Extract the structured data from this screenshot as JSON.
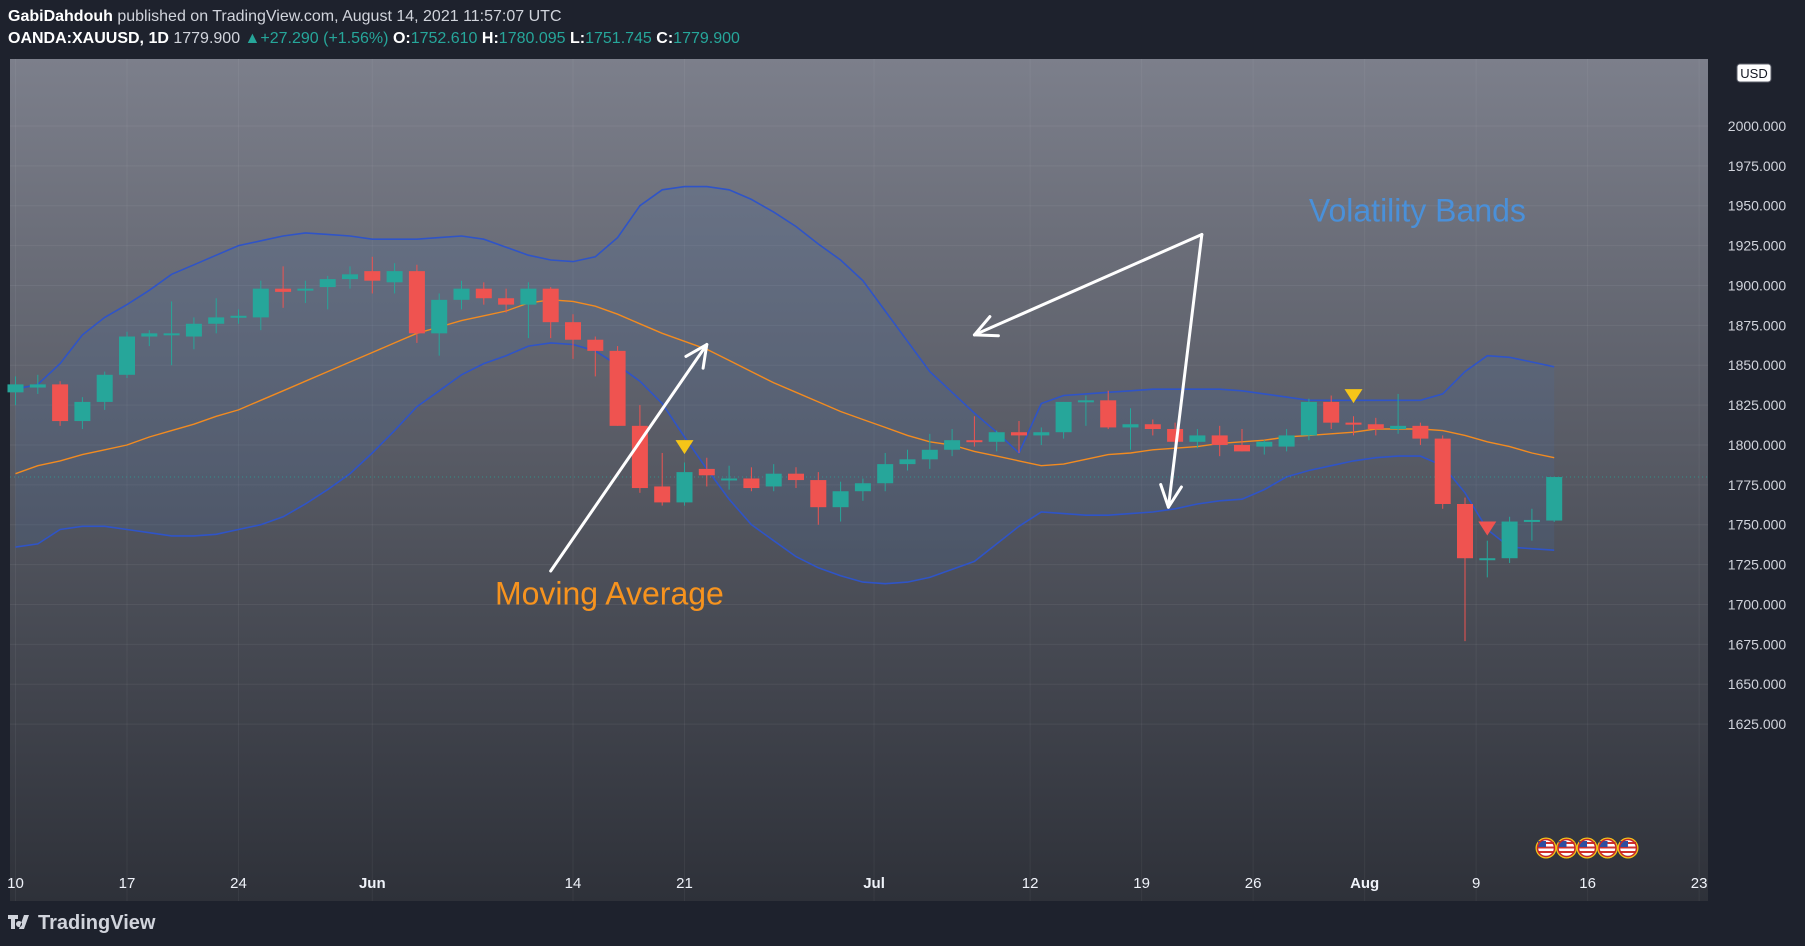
{
  "header": {
    "author": "GabiDahdouh",
    "published_text": "published on TradingView.com, August 14, 2021 11:57:07 UTC",
    "symbol": "OANDA:XAUUSD, 1D",
    "last": "1779.900",
    "change": "+27.290 (+1.56%)",
    "o_label": "O:",
    "o_value": "1752.610",
    "h_label": "H:",
    "h_value": "1780.095",
    "l_label": "L:",
    "l_value": "1751.745",
    "c_label": "C:",
    "c_value": "1779.900"
  },
  "footer": {
    "brand": "TradingView"
  },
  "colors": {
    "up": "#26a69a",
    "down": "#ef5350",
    "band": "#2f54c7",
    "ma": "#f28b20",
    "arrow": "#ffffff",
    "marker": "#f5c518",
    "annotation_ma": "#f7931e",
    "annotation_bands": "#4a90d9"
  },
  "chart_data": {
    "type": "candlestick",
    "currency": "USD",
    "ylim": [
      1605,
      2042
    ],
    "y_ticks": [
      "1625.000",
      "1650.000",
      "1675.000",
      "1700.000",
      "1725.000",
      "1750.000",
      "1775.000",
      "1800.000",
      "1825.000",
      "1850.000",
      "1875.000",
      "1900.000",
      "1925.000",
      "1950.000",
      "1975.000",
      "2000.000"
    ],
    "x_ticks": [
      {
        "label": "10",
        "i": 0
      },
      {
        "label": "17",
        "i": 5
      },
      {
        "label": "24",
        "i": 10
      },
      {
        "label": "Jun",
        "i": 16
      },
      {
        "label": "14",
        "i": 25
      },
      {
        "label": "21",
        "i": 30
      },
      {
        "label": "Jul",
        "i": 38.5
      },
      {
        "label": "12",
        "i": 45.5
      },
      {
        "label": "19",
        "i": 50.5
      },
      {
        "label": "26",
        "i": 55.5
      },
      {
        "label": "Aug",
        "i": 60.5
      },
      {
        "label": "9",
        "i": 65.5
      },
      {
        "label": "16",
        "i": 70.5
      },
      {
        "label": "23",
        "i": 75.5
      }
    ],
    "candles": [
      {
        "i": 0,
        "o": 1833,
        "h": 1843,
        "l": 1825,
        "c": 1838
      },
      {
        "i": 1,
        "o": 1836,
        "h": 1844,
        "l": 1832,
        "c": 1838
      },
      {
        "i": 2,
        "o": 1838,
        "h": 1840,
        "l": 1812,
        "c": 1815
      },
      {
        "i": 3,
        "o": 1815,
        "h": 1830,
        "l": 1810,
        "c": 1827
      },
      {
        "i": 4,
        "o": 1827,
        "h": 1846,
        "l": 1822,
        "c": 1844
      },
      {
        "i": 5,
        "o": 1844,
        "h": 1871,
        "l": 1842,
        "c": 1868
      },
      {
        "i": 6,
        "o": 1868,
        "h": 1872,
        "l": 1862,
        "c": 1870
      },
      {
        "i": 7,
        "o": 1870,
        "h": 1890,
        "l": 1850,
        "c": 1870
      },
      {
        "i": 8,
        "o": 1868,
        "h": 1880,
        "l": 1860,
        "c": 1876
      },
      {
        "i": 9,
        "o": 1876,
        "h": 1892,
        "l": 1870,
        "c": 1880
      },
      {
        "i": 10,
        "o": 1880,
        "h": 1885,
        "l": 1876,
        "c": 1881
      },
      {
        "i": 11,
        "o": 1880,
        "h": 1903,
        "l": 1872,
        "c": 1898
      },
      {
        "i": 12,
        "o": 1898,
        "h": 1912,
        "l": 1886,
        "c": 1896
      },
      {
        "i": 13,
        "o": 1897,
        "h": 1903,
        "l": 1889,
        "c": 1898
      },
      {
        "i": 14,
        "o": 1899,
        "h": 1906,
        "l": 1885,
        "c": 1904
      },
      {
        "i": 15,
        "o": 1904,
        "h": 1912,
        "l": 1898,
        "c": 1907
      },
      {
        "i": 16,
        "o": 1909,
        "h": 1918,
        "l": 1895,
        "c": 1903
      },
      {
        "i": 17,
        "o": 1902,
        "h": 1914,
        "l": 1895,
        "c": 1909
      },
      {
        "i": 18,
        "o": 1909,
        "h": 1913,
        "l": 1864,
        "c": 1870
      },
      {
        "i": 19,
        "o": 1870,
        "h": 1895,
        "l": 1856,
        "c": 1891
      },
      {
        "i": 20,
        "o": 1891,
        "h": 1903,
        "l": 1885,
        "c": 1898
      },
      {
        "i": 21,
        "o": 1898,
        "h": 1902,
        "l": 1888,
        "c": 1892
      },
      {
        "i": 22,
        "o": 1892,
        "h": 1898,
        "l": 1883,
        "c": 1888
      },
      {
        "i": 23,
        "o": 1888,
        "h": 1902,
        "l": 1867,
        "c": 1898
      },
      {
        "i": 24,
        "o": 1898,
        "h": 1899,
        "l": 1867,
        "c": 1877
      },
      {
        "i": 25,
        "o": 1877,
        "h": 1882,
        "l": 1854,
        "c": 1866
      },
      {
        "i": 26,
        "o": 1866,
        "h": 1868,
        "l": 1843,
        "c": 1859
      },
      {
        "i": 27,
        "o": 1859,
        "h": 1862,
        "l": 1812,
        "c": 1812
      },
      {
        "i": 28,
        "o": 1812,
        "h": 1825,
        "l": 1770,
        "c": 1773
      },
      {
        "i": 29,
        "o": 1774,
        "h": 1795,
        "l": 1762,
        "c": 1764
      },
      {
        "i": 30,
        "o": 1764,
        "h": 1789,
        "l": 1762,
        "c": 1783
      },
      {
        "i": 31,
        "o": 1785,
        "h": 1792,
        "l": 1774,
        "c": 1781
      },
      {
        "i": 32,
        "o": 1779,
        "h": 1787,
        "l": 1772,
        "c": 1779
      },
      {
        "i": 33,
        "o": 1779,
        "h": 1786,
        "l": 1771,
        "c": 1773
      },
      {
        "i": 34,
        "o": 1774,
        "h": 1788,
        "l": 1771,
        "c": 1782
      },
      {
        "i": 35,
        "o": 1782,
        "h": 1786,
        "l": 1773,
        "c": 1778
      },
      {
        "i": 36,
        "o": 1778,
        "h": 1783,
        "l": 1750,
        "c": 1761
      },
      {
        "i": 37,
        "o": 1761,
        "h": 1777,
        "l": 1752,
        "c": 1771
      },
      {
        "i": 38,
        "o": 1771,
        "h": 1779,
        "l": 1765,
        "c": 1776
      },
      {
        "i": 39,
        "o": 1776,
        "h": 1795,
        "l": 1771,
        "c": 1788
      },
      {
        "i": 40,
        "o": 1788,
        "h": 1797,
        "l": 1784,
        "c": 1791
      },
      {
        "i": 41,
        "o": 1791,
        "h": 1807,
        "l": 1785,
        "c": 1797
      },
      {
        "i": 42,
        "o": 1797,
        "h": 1810,
        "l": 1793,
        "c": 1803
      },
      {
        "i": 43,
        "o": 1803,
        "h": 1818,
        "l": 1799,
        "c": 1802
      },
      {
        "i": 44,
        "o": 1802,
        "h": 1809,
        "l": 1796,
        "c": 1808
      },
      {
        "i": 45,
        "o": 1808,
        "h": 1815,
        "l": 1795,
        "c": 1806
      },
      {
        "i": 46,
        "o": 1806,
        "h": 1811,
        "l": 1800,
        "c": 1808
      },
      {
        "i": 47,
        "o": 1808,
        "h": 1827,
        "l": 1804,
        "c": 1827
      },
      {
        "i": 48,
        "o": 1827,
        "h": 1831,
        "l": 1812,
        "c": 1828
      },
      {
        "i": 49,
        "o": 1828,
        "h": 1834,
        "l": 1810,
        "c": 1811
      },
      {
        "i": 50,
        "o": 1811,
        "h": 1823,
        "l": 1797,
        "c": 1813
      },
      {
        "i": 51,
        "o": 1813,
        "h": 1816,
        "l": 1806,
        "c": 1810
      },
      {
        "i": 52,
        "o": 1810,
        "h": 1814,
        "l": 1795,
        "c": 1802
      },
      {
        "i": 53,
        "o": 1802,
        "h": 1810,
        "l": 1798,
        "c": 1806
      },
      {
        "i": 54,
        "o": 1806,
        "h": 1812,
        "l": 1793,
        "c": 1800
      },
      {
        "i": 55,
        "o": 1800,
        "h": 1810,
        "l": 1796,
        "c": 1796
      },
      {
        "i": 56,
        "o": 1799,
        "h": 1803,
        "l": 1794,
        "c": 1802
      },
      {
        "i": 57,
        "o": 1799,
        "h": 1810,
        "l": 1796,
        "c": 1806
      },
      {
        "i": 58,
        "o": 1806,
        "h": 1829,
        "l": 1803,
        "c": 1827
      },
      {
        "i": 59,
        "o": 1827,
        "h": 1831,
        "l": 1810,
        "c": 1814
      },
      {
        "i": 60,
        "o": 1814,
        "h": 1818,
        "l": 1806,
        "c": 1813
      },
      {
        "i": 61,
        "o": 1813,
        "h": 1817,
        "l": 1806,
        "c": 1810
      },
      {
        "i": 62,
        "o": 1810,
        "h": 1832,
        "l": 1807,
        "c": 1812
      },
      {
        "i": 63,
        "o": 1812,
        "h": 1814,
        "l": 1800,
        "c": 1804
      },
      {
        "i": 64,
        "o": 1804,
        "h": 1806,
        "l": 1760,
        "c": 1763
      },
      {
        "i": 65,
        "o": 1763,
        "h": 1767,
        "l": 1677,
        "c": 1729
      },
      {
        "i": 66,
        "o": 1729,
        "h": 1740,
        "l": 1717,
        "c": 1729
      },
      {
        "i": 67,
        "o": 1729,
        "h": 1755,
        "l": 1726,
        "c": 1752
      },
      {
        "i": 68,
        "o": 1752,
        "h": 1760,
        "l": 1740,
        "c": 1753
      },
      {
        "i": 69,
        "o": 1752.61,
        "h": 1780.095,
        "l": 1751.745,
        "c": 1779.9
      }
    ],
    "upper_band": [
      [
        0,
        1835
      ],
      [
        1,
        1838
      ],
      [
        2,
        1851
      ],
      [
        3,
        1869
      ],
      [
        4,
        1880
      ],
      [
        5,
        1888
      ],
      [
        6,
        1897
      ],
      [
        7,
        1907
      ],
      [
        8,
        1913
      ],
      [
        9,
        1919
      ],
      [
        10,
        1925
      ],
      [
        11,
        1928
      ],
      [
        12,
        1931
      ],
      [
        13,
        1933
      ],
      [
        14,
        1932
      ],
      [
        15,
        1931
      ],
      [
        16,
        1929
      ],
      [
        17,
        1929
      ],
      [
        18,
        1929
      ],
      [
        19,
        1930
      ],
      [
        20,
        1931
      ],
      [
        21,
        1929
      ],
      [
        22,
        1924
      ],
      [
        23,
        1919
      ],
      [
        24,
        1916
      ],
      [
        25,
        1915
      ],
      [
        26,
        1918
      ],
      [
        27,
        1930
      ],
      [
        28,
        1950
      ],
      [
        29,
        1960
      ],
      [
        30,
        1962
      ],
      [
        31,
        1962
      ],
      [
        32,
        1960
      ],
      [
        33,
        1954
      ],
      [
        34,
        1946
      ],
      [
        35,
        1937
      ],
      [
        36,
        1926
      ],
      [
        37,
        1916
      ],
      [
        38,
        1903
      ],
      [
        39,
        1884
      ],
      [
        40,
        1865
      ],
      [
        41,
        1846
      ],
      [
        42,
        1833
      ],
      [
        43,
        1820
      ],
      [
        44,
        1808
      ],
      [
        45,
        1795
      ],
      [
        46,
        1826
      ],
      [
        47,
        1831
      ],
      [
        48,
        1832
      ],
      [
        49,
        1833
      ],
      [
        50,
        1834
      ],
      [
        51,
        1835
      ],
      [
        52,
        1835
      ],
      [
        53,
        1835
      ],
      [
        54,
        1835
      ],
      [
        55,
        1834
      ],
      [
        56,
        1832
      ],
      [
        57,
        1830
      ],
      [
        58,
        1828
      ],
      [
        59,
        1828
      ],
      [
        60,
        1828
      ],
      [
        61,
        1828
      ],
      [
        62,
        1828
      ],
      [
        63,
        1828
      ],
      [
        64,
        1832
      ],
      [
        65,
        1846
      ],
      [
        66,
        1856
      ],
      [
        67,
        1855
      ],
      [
        68,
        1852
      ],
      [
        69,
        1849
      ]
    ],
    "lower_band": [
      [
        0,
        1736
      ],
      [
        1,
        1738
      ],
      [
        2,
        1747
      ],
      [
        3,
        1749
      ],
      [
        4,
        1749
      ],
      [
        5,
        1747
      ],
      [
        6,
        1745
      ],
      [
        7,
        1743
      ],
      [
        8,
        1743
      ],
      [
        9,
        1744
      ],
      [
        10,
        1747
      ],
      [
        11,
        1750
      ],
      [
        12,
        1755
      ],
      [
        13,
        1763
      ],
      [
        14,
        1772
      ],
      [
        15,
        1782
      ],
      [
        16,
        1795
      ],
      [
        17,
        1809
      ],
      [
        18,
        1824
      ],
      [
        19,
        1834
      ],
      [
        20,
        1844
      ],
      [
        21,
        1851
      ],
      [
        22,
        1856
      ],
      [
        23,
        1862
      ],
      [
        24,
        1864
      ],
      [
        25,
        1863
      ],
      [
        26,
        1859
      ],
      [
        27,
        1850
      ],
      [
        28,
        1840
      ],
      [
        29,
        1826
      ],
      [
        30,
        1805
      ],
      [
        31,
        1785
      ],
      [
        32,
        1766
      ],
      [
        33,
        1750
      ],
      [
        34,
        1740
      ],
      [
        35,
        1730
      ],
      [
        36,
        1723
      ],
      [
        37,
        1718
      ],
      [
        38,
        1714
      ],
      [
        39,
        1713
      ],
      [
        40,
        1714
      ],
      [
        41,
        1717
      ],
      [
        42,
        1722
      ],
      [
        43,
        1727
      ],
      [
        44,
        1738
      ],
      [
        45,
        1749
      ],
      [
        46,
        1758
      ],
      [
        47,
        1757
      ],
      [
        48,
        1756
      ],
      [
        49,
        1756
      ],
      [
        50,
        1757
      ],
      [
        51,
        1758
      ],
      [
        52,
        1760
      ],
      [
        53,
        1763
      ],
      [
        54,
        1765
      ],
      [
        55,
        1766
      ],
      [
        56,
        1772
      ],
      [
        57,
        1780
      ],
      [
        58,
        1784
      ],
      [
        59,
        1787
      ],
      [
        60,
        1790
      ],
      [
        61,
        1792
      ],
      [
        62,
        1793
      ],
      [
        63,
        1793
      ],
      [
        64,
        1787
      ],
      [
        65,
        1770
      ],
      [
        66,
        1747
      ],
      [
        67,
        1736
      ],
      [
        68,
        1735
      ],
      [
        69,
        1734
      ]
    ],
    "moving_average": [
      [
        0,
        1782
      ],
      [
        1,
        1787
      ],
      [
        2,
        1790
      ],
      [
        3,
        1794
      ],
      [
        4,
        1797
      ],
      [
        5,
        1800
      ],
      [
        6,
        1805
      ],
      [
        7,
        1809
      ],
      [
        8,
        1813
      ],
      [
        9,
        1818
      ],
      [
        10,
        1822
      ],
      [
        11,
        1828
      ],
      [
        12,
        1834
      ],
      [
        13,
        1840
      ],
      [
        14,
        1846
      ],
      [
        15,
        1852
      ],
      [
        16,
        1858
      ],
      [
        17,
        1864
      ],
      [
        18,
        1870
      ],
      [
        19,
        1874
      ],
      [
        20,
        1878
      ],
      [
        21,
        1881
      ],
      [
        22,
        1884
      ],
      [
        23,
        1889
      ],
      [
        24,
        1891
      ],
      [
        25,
        1890
      ],
      [
        26,
        1887
      ],
      [
        27,
        1882
      ],
      [
        28,
        1876
      ],
      [
        29,
        1870
      ],
      [
        30,
        1865
      ],
      [
        31,
        1860
      ],
      [
        32,
        1853
      ],
      [
        33,
        1846
      ],
      [
        34,
        1839
      ],
      [
        35,
        1833
      ],
      [
        36,
        1827
      ],
      [
        37,
        1821
      ],
      [
        38,
        1816
      ],
      [
        39,
        1811
      ],
      [
        40,
        1806
      ],
      [
        41,
        1802
      ],
      [
        42,
        1800
      ],
      [
        43,
        1796
      ],
      [
        44,
        1793
      ],
      [
        45,
        1790
      ],
      [
        46,
        1787
      ],
      [
        47,
        1788
      ],
      [
        48,
        1791
      ],
      [
        49,
        1794
      ],
      [
        50,
        1795
      ],
      [
        51,
        1797
      ],
      [
        52,
        1798
      ],
      [
        53,
        1799
      ],
      [
        54,
        1801
      ],
      [
        55,
        1802
      ],
      [
        56,
        1803
      ],
      [
        57,
        1805
      ],
      [
        58,
        1806
      ],
      [
        59,
        1807
      ],
      [
        60,
        1808
      ],
      [
        61,
        1810
      ],
      [
        62,
        1810
      ],
      [
        63,
        1810
      ],
      [
        64,
        1809
      ],
      [
        65,
        1806
      ],
      [
        66,
        1802
      ],
      [
        67,
        1799
      ],
      [
        68,
        1795
      ],
      [
        69,
        1792
      ]
    ],
    "markers": [
      {
        "i": 30,
        "price": 1798,
        "color": "#f5c518"
      },
      {
        "i": 60,
        "price": 1830,
        "color": "#f5c518"
      },
      {
        "i": 66,
        "price": 1747,
        "color": "#ef5350"
      }
    ],
    "annotations": [
      {
        "text": "Moving Average",
        "at": [
          21.5,
          1700
        ],
        "color": "#f7931e"
      },
      {
        "text": "Volatility Bands",
        "at": [
          58,
          1940
        ],
        "color": "#4a90d9"
      }
    ],
    "arrows": [
      {
        "from": [
          24,
          1721
        ],
        "to": [
          31,
          1863
        ]
      },
      {
        "from": [
          53.2,
          1932
        ],
        "to": [
          43,
          1869
        ]
      },
      {
        "from": [
          53.2,
          1932
        ],
        "to": [
          51.7,
          1761
        ]
      }
    ]
  }
}
